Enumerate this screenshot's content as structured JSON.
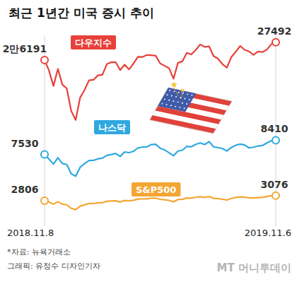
{
  "title": "최근 1년간 미국 증시 추이",
  "source": "*자료: 뉴욕거래소",
  "credit": "그래픽: 유정수 디자인기자",
  "logo": "MT 머니투데이",
  "chart_data": [
    {
      "type": "line",
      "categories": [
        "2018.11.8",
        null,
        null,
        null,
        null,
        null,
        null,
        null,
        null,
        null,
        null,
        null,
        null,
        null,
        null,
        null,
        null,
        null,
        null,
        null,
        null,
        null,
        null,
        null,
        null,
        null,
        null,
        null,
        null,
        null,
        null,
        null,
        null,
        null,
        null,
        null,
        null,
        null,
        null,
        null,
        null,
        null,
        null,
        null,
        null,
        null,
        null,
        null,
        null,
        null,
        null,
        null,
        "2019.11.6"
      ],
      "series": [
        {
          "name": "다우지수",
          "color": "#e8403a",
          "values": [
            26191,
            25413,
            24286,
            25538,
            24389,
            24100,
            22445,
            21792,
            23433,
            23995,
            24706,
            24737,
            25063,
            25106,
            25883,
            26031,
            26026,
            25450,
            25848,
            25502,
            25928,
            26424,
            26412,
            26559,
            26543,
            26504,
            25942,
            25764,
            25585,
            24815,
            25983,
            26089,
            26719,
            26599,
            26922,
            27332,
            27154,
            27192,
            26485,
            26287,
            25886,
            25628,
            26403,
            26797,
            27220,
            26935,
            26820,
            26573,
            26816,
            26770,
            26958,
            27347,
            27492
          ],
          "value_labels": [
            "2만6191",
            null,
            null,
            null,
            null,
            null,
            null,
            null,
            null,
            null,
            null,
            null,
            null,
            null,
            null,
            null,
            null,
            null,
            null,
            null,
            null,
            null,
            null,
            null,
            null,
            null,
            null,
            null,
            null,
            null,
            null,
            null,
            null,
            null,
            null,
            null,
            null,
            null,
            null,
            null,
            null,
            null,
            null,
            null,
            null,
            null,
            null,
            null,
            null,
            null,
            null,
            null,
            "27492"
          ]
        }
      ],
      "ylim": [
        21000,
        28000
      ],
      "data_labels": true,
      "tick_labels": false
    },
    {
      "type": "line",
      "categories": [
        "2018.11.8",
        null,
        null,
        null,
        null,
        null,
        null,
        null,
        null,
        null,
        null,
        null,
        null,
        null,
        null,
        null,
        null,
        null,
        null,
        null,
        null,
        null,
        null,
        null,
        null,
        null,
        null,
        null,
        null,
        null,
        null,
        null,
        null,
        null,
        null,
        null,
        null,
        null,
        null,
        null,
        null,
        null,
        null,
        null,
        null,
        null,
        null,
        null,
        null,
        null,
        null,
        null,
        "2019.11.6"
      ],
      "series": [
        {
          "name": "나스닥",
          "color": "#2fa8e0",
          "values": [
            7530,
            7247,
            6939,
            7331,
            6969,
            6911,
            6333,
            6190,
            6739,
            6971,
            7157,
            7164,
            7263,
            7298,
            7472,
            7527,
            7595,
            7408,
            7688,
            7643,
            7729,
            7939,
            7984,
            7998,
            8146,
            8164,
            7917,
            7816,
            7637,
            7453,
            7742,
            7797,
            8032,
            8006,
            8161,
            8244,
            8146,
            8330,
            8004,
            7959,
            7896,
            7751,
            7963,
            8103,
            8176,
            8118,
            7940,
            7982,
            8057,
            8089,
            8243,
            8386,
            8410
          ],
          "value_labels": [
            "7530",
            null,
            null,
            null,
            null,
            null,
            null,
            null,
            null,
            null,
            null,
            null,
            null,
            null,
            null,
            null,
            null,
            null,
            null,
            null,
            null,
            null,
            null,
            null,
            null,
            null,
            null,
            null,
            null,
            null,
            null,
            null,
            null,
            null,
            null,
            null,
            null,
            null,
            null,
            null,
            null,
            null,
            null,
            null,
            null,
            null,
            null,
            null,
            null,
            null,
            null,
            null,
            "8410"
          ]
        }
      ],
      "ylim": [
        5500,
        9000
      ],
      "data_labels": true,
      "tick_labels": false
    },
    {
      "type": "line",
      "categories": [
        "2018.11.8",
        null,
        null,
        null,
        null,
        null,
        null,
        null,
        null,
        null,
        null,
        null,
        null,
        null,
        null,
        null,
        null,
        null,
        null,
        null,
        null,
        null,
        null,
        null,
        null,
        null,
        null,
        null,
        null,
        null,
        null,
        null,
        null,
        null,
        null,
        null,
        null,
        null,
        null,
        null,
        null,
        null,
        null,
        null,
        null,
        null,
        null,
        null,
        null,
        null,
        null,
        null,
        "2019.11.6"
      ],
      "series": [
        {
          "name": "S&P500",
          "color": "#f4a633",
          "values": [
            2806,
            2736,
            2633,
            2760,
            2633,
            2600,
            2417,
            2351,
            2532,
            2596,
            2671,
            2664,
            2707,
            2708,
            2776,
            2793,
            2804,
            2743,
            2822,
            2801,
            2834,
            2893,
            2907,
            2905,
            2940,
            2946,
            2881,
            2860,
            2826,
            2752,
            2873,
            2887,
            2950,
            2942,
            2990,
            3014,
            2977,
            3026,
            2932,
            2919,
            2889,
            2847,
            2926,
            2979,
            3007,
            2992,
            2962,
            2953,
            2970,
            2986,
            3023,
            3067,
            3076
          ],
          "value_labels": [
            "2806",
            null,
            null,
            null,
            null,
            null,
            null,
            null,
            null,
            null,
            null,
            null,
            null,
            null,
            null,
            null,
            null,
            null,
            null,
            null,
            null,
            null,
            null,
            null,
            null,
            null,
            null,
            null,
            null,
            null,
            null,
            null,
            null,
            null,
            null,
            null,
            null,
            null,
            null,
            null,
            null,
            null,
            null,
            null,
            null,
            null,
            null,
            null,
            null,
            null,
            null,
            null,
            "3076"
          ]
        }
      ],
      "ylim": [
        1500,
        3500
      ],
      "data_labels": true,
      "tick_labels": "x"
    }
  ]
}
